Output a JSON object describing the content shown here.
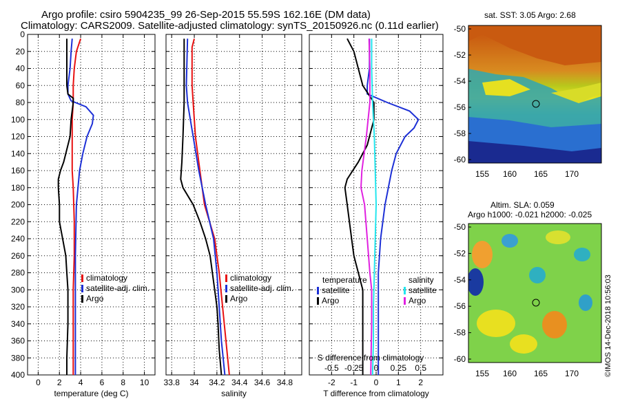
{
  "titles": {
    "line1": "Argo profile: csiro 5904235_99 26-Sep-2015 55.59S 162.16E (DM data)",
    "line2": "Climatology: CARS2009. Satellite-adjusted climatology: synTS_20150926.nc (0.11d earlier)"
  },
  "map_titles": {
    "sst": "sat. SST: 3.05 Argo: 2.68",
    "sla1": "Altim. SLA: 0.059",
    "sla2": "Argo h1000: -0.021 h2000: -0.025"
  },
  "credit": "©IMOS 14-Dec-2018 10:56:03",
  "colors": {
    "climatology": "#e81010",
    "satellite": "#1c2fd6",
    "argo": "#000000",
    "sal_satellite": "#22e6ee",
    "sal_climatology": "#e020e0"
  },
  "chart_data": [
    {
      "type": "line",
      "title": "",
      "xlabel": "temperature (deg C)",
      "ylabel": "",
      "xlim": [
        -1,
        11
      ],
      "ylim": [
        400,
        0
      ],
      "xticks": [
        "0",
        "2",
        "4",
        "6",
        "8",
        "10"
      ],
      "yticks": [
        "0",
        "20",
        "40",
        "60",
        "80",
        "100",
        "120",
        "140",
        "160",
        "180",
        "200",
        "220",
        "240",
        "260",
        "280",
        "300",
        "320",
        "340",
        "360",
        "380",
        "400"
      ],
      "legend": [
        "climatology",
        "satellite-adj. clim.",
        "Argo"
      ],
      "series": [
        {
          "name": "climatology",
          "depth": [
            5,
            20,
            40,
            60,
            80,
            100,
            140,
            160,
            180,
            220,
            260,
            300,
            340,
            400
          ],
          "values": [
            4.0,
            3.6,
            3.4,
            3.3,
            3.3,
            3.2,
            3.2,
            3.2,
            3.3,
            3.4,
            3.4,
            3.3,
            3.3,
            3.3
          ]
        },
        {
          "name": "satellite-adj. clim.",
          "depth": [
            5,
            20,
            40,
            60,
            70,
            78,
            85,
            95,
            105,
            120,
            140,
            160,
            200,
            260,
            320,
            400
          ],
          "values": [
            3.2,
            3.1,
            3.0,
            2.8,
            2.8,
            3.1,
            4.5,
            5.2,
            5.1,
            4.6,
            4.2,
            3.9,
            3.6,
            3.5,
            3.5,
            3.5
          ]
        },
        {
          "name": "Argo",
          "depth": [
            5,
            20,
            40,
            60,
            70,
            75,
            80,
            100,
            120,
            140,
            150,
            160,
            170,
            180,
            200,
            220,
            240,
            260,
            280,
            300,
            320,
            340,
            380,
            400
          ],
          "values": [
            2.7,
            2.7,
            2.7,
            2.7,
            2.8,
            3.3,
            3.3,
            3.1,
            3.0,
            2.6,
            2.4,
            2.1,
            1.9,
            1.9,
            2.0,
            2.0,
            2.3,
            2.6,
            2.7,
            2.8,
            2.8,
            2.8,
            2.7,
            2.7
          ]
        }
      ]
    },
    {
      "type": "line",
      "title": "",
      "xlabel": "salinity",
      "ylabel": "",
      "xlim": [
        33.75,
        34.95
      ],
      "ylim": [
        400,
        0
      ],
      "xticks": [
        "33.8",
        "34",
        "34.2",
        "34.4",
        "34.6",
        "34.8"
      ],
      "yticks": [],
      "legend": [
        "climatology",
        "satellite-adj. clim.",
        "Argo"
      ],
      "series": [
        {
          "name": "climatology",
          "depth": [
            5,
            15,
            60,
            80,
            120,
            160,
            200,
            240,
            280,
            320,
            360,
            400
          ],
          "values": [
            34.0,
            33.98,
            33.98,
            33.99,
            34.01,
            34.05,
            34.09,
            34.18,
            34.22,
            34.25,
            34.28,
            34.31
          ]
        },
        {
          "name": "satellite-adj. clim.",
          "depth": [
            5,
            60,
            80,
            120,
            160,
            200,
            240,
            280,
            320,
            360,
            400
          ],
          "values": [
            33.94,
            33.93,
            33.94,
            33.99,
            34.04,
            34.1,
            34.17,
            34.2,
            34.22,
            34.24,
            34.27
          ]
        },
        {
          "name": "Argo",
          "depth": [
            5,
            60,
            80,
            120,
            150,
            170,
            180,
            200,
            220,
            240,
            260,
            280,
            300,
            320,
            340,
            370,
            400
          ],
          "values": [
            33.91,
            33.91,
            33.91,
            33.9,
            33.89,
            33.88,
            33.9,
            33.99,
            34.05,
            34.1,
            34.14,
            34.16,
            34.18,
            34.2,
            34.21,
            34.22,
            34.24
          ]
        }
      ]
    },
    {
      "type": "line",
      "title": "",
      "xlabel": "T difference from climatology",
      "xlabel_top": "S difference from climatology",
      "xlim": [
        -3,
        3
      ],
      "xlim_top": [
        -0.75,
        0.75
      ],
      "ylim": [
        400,
        0
      ],
      "xticks": [
        "-2",
        "-1",
        "0",
        "1",
        "2"
      ],
      "xticks_top": [
        "-0.5",
        "-0.25",
        "0",
        "0.25",
        "0.5"
      ],
      "yticks": [],
      "legend_temperature": {
        "title": "temperature",
        "items": [
          "satellite",
          "Argo"
        ]
      },
      "legend_salinity": {
        "title": "salinity",
        "items": [
          "satellite",
          "Argo"
        ]
      },
      "series": [
        {
          "name": "T satellite",
          "depth": [
            5,
            40,
            60,
            70,
            80,
            90,
            100,
            110,
            120,
            140,
            160,
            200,
            240,
            280,
            320,
            360,
            400
          ],
          "values": [
            -0.3,
            -0.3,
            -0.4,
            -0.4,
            0.5,
            1.5,
            1.9,
            1.7,
            1.3,
            0.9,
            0.7,
            0.4,
            0.2,
            0.1,
            0.1,
            0.1,
            0.1
          ]
        },
        {
          "name": "T Argo",
          "depth": [
            5,
            20,
            40,
            60,
            80,
            100,
            130,
            150,
            170,
            180,
            200,
            240,
            260,
            300,
            340,
            400
          ],
          "values": [
            -1.3,
            -1.0,
            -0.8,
            -0.6,
            -0.1,
            -0.1,
            -0.4,
            -0.8,
            -1.3,
            -1.4,
            -1.3,
            -1.1,
            -1.0,
            -0.6,
            -0.6,
            -0.6
          ]
        },
        {
          "name": "S satellite",
          "depth": [
            5,
            40,
            80,
            120,
            160,
            200,
            240,
            280,
            320,
            360,
            400
          ],
          "values": [
            -0.05,
            -0.05,
            -0.04,
            -0.02,
            -0.01,
            0.0,
            -0.01,
            -0.02,
            -0.03,
            -0.03,
            -0.04
          ]
        },
        {
          "name": "S Argo",
          "depth": [
            5,
            40,
            80,
            120,
            160,
            180,
            200,
            240,
            280,
            300,
            340,
            400
          ],
          "values": [
            -0.08,
            -0.07,
            -0.07,
            -0.11,
            -0.16,
            -0.17,
            -0.13,
            -0.1,
            -0.07,
            -0.05,
            -0.05,
            -0.06
          ]
        }
      ]
    }
  ],
  "maps": {
    "sst": {
      "xticks": [
        "155",
        "160",
        "165",
        "170"
      ],
      "yticks": [
        "-50",
        "-52",
        "-54",
        "-56",
        "-58",
        "-60"
      ]
    },
    "sla": {
      "xticks": [
        "155",
        "160",
        "165",
        "170"
      ],
      "yticks": [
        "-50",
        "-52",
        "-54",
        "-56",
        "-58",
        "-60"
      ]
    }
  }
}
